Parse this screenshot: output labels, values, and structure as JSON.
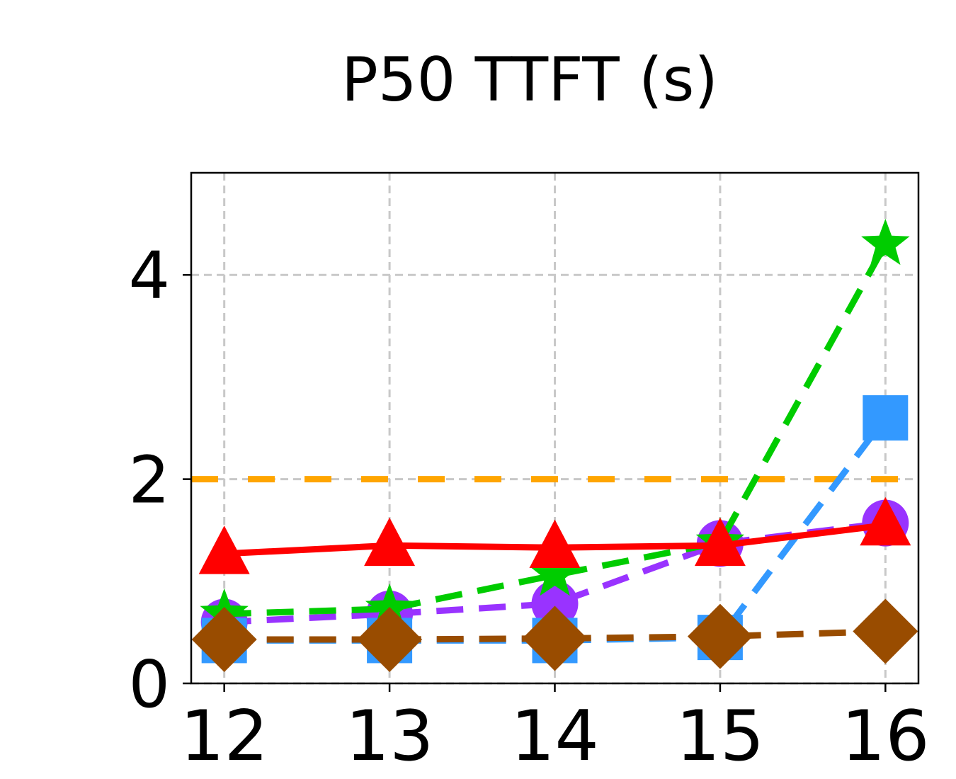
{
  "chart_data": {
    "type": "line",
    "title": "P50 TTFT (s)",
    "xlabel": "",
    "ylabel": "",
    "x": [
      12,
      13,
      14,
      15,
      16
    ],
    "xlim": [
      11.8,
      16.2
    ],
    "ylim": [
      0,
      5
    ],
    "xticks": [
      "12",
      "13",
      "14",
      "15",
      "16"
    ],
    "yticks": [
      0,
      2,
      4
    ],
    "ytick_labels": [
      "0",
      "2",
      "4"
    ],
    "grid": true,
    "reference_line": {
      "y": 2.0,
      "color": "#ffa500",
      "style": "dashed"
    },
    "series": [
      {
        "values": [
          0.6,
          0.68,
          0.78,
          1.37,
          1.57
        ],
        "color": "#9933ff",
        "marker": "circle",
        "style": "dashed"
      },
      {
        "values": [
          0.42,
          0.42,
          0.42,
          0.45,
          2.6
        ],
        "color": "#3399ff",
        "marker": "square",
        "style": "dashed"
      },
      {
        "values": [
          0.68,
          0.73,
          1.06,
          1.38,
          4.3
        ],
        "color": "#00cc00",
        "marker": "star",
        "style": "dashed"
      },
      {
        "values": [
          1.27,
          1.35,
          1.33,
          1.35,
          1.55
        ],
        "color": "#ff0000",
        "marker": "triangle",
        "style": "solid"
      },
      {
        "values": [
          0.43,
          0.43,
          0.44,
          0.46,
          0.51
        ],
        "color": "#994c00",
        "marker": "diamond",
        "style": "dashed"
      }
    ]
  }
}
